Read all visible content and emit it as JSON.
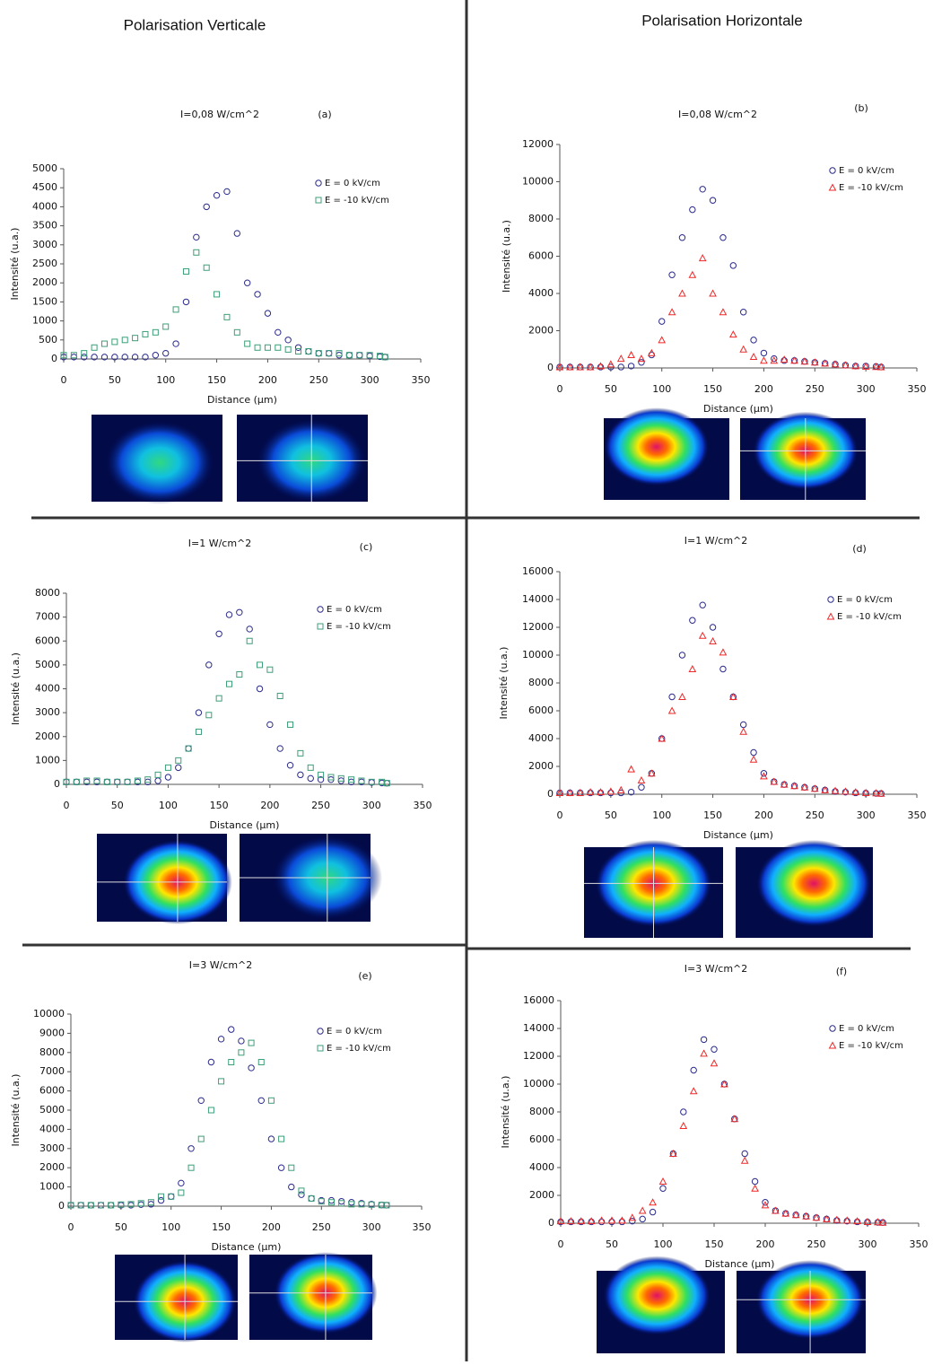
{
  "columns": [
    "Polarisation Verticale",
    "Polarisation Horizontale"
  ],
  "chart_data": [
    {
      "type": "scatter",
      "title": "I=0,08 W/cm^2",
      "annotation": "(a)",
      "x_label": "Distance (μm)",
      "y_label": "Intensité (u.a.)",
      "x": [
        0,
        10,
        20,
        30,
        40,
        50,
        60,
        70,
        80,
        90,
        100,
        110,
        120,
        130,
        140,
        150,
        160,
        170,
        180,
        190,
        200,
        210,
        220,
        230,
        240,
        250,
        260,
        270,
        280,
        290,
        300,
        310,
        315
      ],
      "xlim": [
        0,
        350
      ],
      "xticks": [
        0,
        50,
        100,
        150,
        200,
        250,
        300,
        350
      ],
      "ylim": [
        0,
        5000
      ],
      "yticks": [
        0,
        500,
        1000,
        1500,
        2000,
        2500,
        3000,
        3500,
        4000,
        4500,
        5000
      ],
      "series": [
        {
          "name": "E = 0 kV/cm",
          "color": "#2b2b8c",
          "marker": "circle",
          "values": [
            50,
            50,
            50,
            50,
            50,
            50,
            50,
            50,
            50,
            100,
            150,
            400,
            1500,
            3200,
            4000,
            4300,
            4400,
            3300,
            2000,
            1700,
            1200,
            700,
            500,
            300,
            200,
            150,
            150,
            100,
            100,
            100,
            80,
            60,
            50
          ]
        },
        {
          "name": "E = -10 kV/cm",
          "color": "#3c9f78",
          "marker": "square",
          "values": [
            100,
            100,
            150,
            300,
            400,
            450,
            500,
            550,
            650,
            700,
            850,
            1300,
            2300,
            2800,
            2400,
            1700,
            1100,
            700,
            400,
            300,
            300,
            300,
            250,
            200,
            200,
            150,
            150,
            150,
            100,
            100,
            100,
            80,
            50
          ]
        }
      ]
    },
    {
      "type": "scatter",
      "title": "I=0,08 W/cm^2",
      "annotation": "(b)",
      "x_label": "Distance (μm)",
      "y_label": "Intensité (u.a.)",
      "x": [
        0,
        10,
        20,
        30,
        40,
        50,
        60,
        70,
        80,
        90,
        100,
        110,
        120,
        130,
        140,
        150,
        160,
        170,
        180,
        190,
        200,
        210,
        220,
        230,
        240,
        250,
        260,
        270,
        280,
        290,
        300,
        310,
        315
      ],
      "xlim": [
        0,
        350
      ],
      "xticks": [
        0,
        50,
        100,
        150,
        200,
        250,
        300,
        350
      ],
      "ylim": [
        0,
        12000
      ],
      "yticks": [
        0,
        2000,
        4000,
        6000,
        8000,
        10000,
        12000
      ],
      "series": [
        {
          "name": "E = 0 kV/cm",
          "color": "#2b2b8c",
          "marker": "circle",
          "values": [
            50,
            50,
            50,
            50,
            50,
            50,
            50,
            100,
            300,
            700,
            2500,
            5000,
            7000,
            8500,
            9600,
            9000,
            7000,
            5500,
            3000,
            1500,
            800,
            500,
            400,
            400,
            350,
            300,
            250,
            200,
            150,
            100,
            100,
            80,
            50
          ]
        },
        {
          "name": "E = -10 kV/cm",
          "color": "#ee2a2a",
          "marker": "triangle",
          "values": [
            50,
            50,
            50,
            50,
            100,
            200,
            500,
            700,
            500,
            800,
            1500,
            3000,
            4000,
            5000,
            5900,
            4000,
            3000,
            1800,
            1000,
            600,
            400,
            400,
            450,
            400,
            350,
            300,
            250,
            200,
            150,
            100,
            80,
            60,
            50
          ]
        }
      ]
    },
    {
      "type": "scatter",
      "title": "I=1 W/cm^2",
      "annotation": "(c)",
      "x_label": "Distance (μm)",
      "y_label": "Intensité (u.a.)",
      "x": [
        0,
        10,
        20,
        30,
        40,
        50,
        60,
        70,
        80,
        90,
        100,
        110,
        120,
        130,
        140,
        150,
        160,
        170,
        180,
        190,
        200,
        210,
        220,
        230,
        240,
        250,
        260,
        270,
        280,
        290,
        300,
        310,
        315
      ],
      "xlim": [
        0,
        350
      ],
      "xticks": [
        0,
        50,
        100,
        150,
        200,
        250,
        300,
        350
      ],
      "ylim": [
        0,
        8000
      ],
      "yticks": [
        0,
        1000,
        2000,
        3000,
        4000,
        5000,
        6000,
        7000,
        8000
      ],
      "series": [
        {
          "name": "E = 0 kV/cm",
          "color": "#2b2b8c",
          "marker": "circle",
          "values": [
            100,
            100,
            100,
            100,
            100,
            100,
            100,
            100,
            100,
            150,
            300,
            700,
            1500,
            3000,
            5000,
            6300,
            7100,
            7200,
            6500,
            4000,
            2500,
            1500,
            800,
            400,
            250,
            200,
            200,
            150,
            100,
            100,
            80,
            60,
            50
          ]
        },
        {
          "name": "E = -10 kV/cm",
          "color": "#3c9f78",
          "marker": "square",
          "values": [
            100,
            100,
            150,
            150,
            100,
            100,
            100,
            150,
            200,
            400,
            700,
            1000,
            1500,
            2200,
            2900,
            3600,
            4200,
            4600,
            6000,
            5000,
            4800,
            3700,
            2500,
            1300,
            700,
            400,
            300,
            250,
            200,
            150,
            100,
            100,
            50
          ]
        }
      ]
    },
    {
      "type": "scatter",
      "title": "I=1 W/cm^2",
      "annotation": "(d)",
      "x_label": "Distance (μm)",
      "y_label": "Intensité (u.a.)",
      "x": [
        0,
        10,
        20,
        30,
        40,
        50,
        60,
        70,
        80,
        90,
        100,
        110,
        120,
        130,
        140,
        150,
        160,
        170,
        180,
        190,
        200,
        210,
        220,
        230,
        240,
        250,
        260,
        270,
        280,
        290,
        300,
        310,
        315
      ],
      "xlim": [
        0,
        350
      ],
      "xticks": [
        0,
        50,
        100,
        150,
        200,
        250,
        300,
        350
      ],
      "ylim": [
        0,
        16000
      ],
      "yticks": [
        0,
        2000,
        4000,
        6000,
        8000,
        10000,
        12000,
        14000,
        16000
      ],
      "series": [
        {
          "name": "E = 0 kV/cm",
          "color": "#2b2b8c",
          "marker": "circle",
          "values": [
            100,
            100,
            100,
            100,
            100,
            100,
            100,
            150,
            500,
            1500,
            4000,
            7000,
            10000,
            12500,
            13600,
            12000,
            9000,
            7000,
            5000,
            3000,
            1500,
            900,
            700,
            600,
            500,
            400,
            300,
            200,
            150,
            100,
            80,
            60,
            50
          ]
        },
        {
          "name": "E = -10 kV/cm",
          "color": "#ee2a2a",
          "marker": "triangle",
          "values": [
            100,
            100,
            100,
            150,
            150,
            200,
            300,
            1800,
            1000,
            1500,
            4000,
            6000,
            7000,
            9000,
            11400,
            11000,
            10200,
            7000,
            4500,
            2500,
            1300,
            900,
            700,
            600,
            500,
            400,
            300,
            250,
            200,
            150,
            100,
            80,
            50
          ]
        }
      ]
    },
    {
      "type": "scatter",
      "title": "I=3 W/cm^2",
      "annotation": "(e)",
      "x_label": "Distance (μm)",
      "y_label": "Intensité (u.a.)",
      "x": [
        0,
        10,
        20,
        30,
        40,
        50,
        60,
        70,
        80,
        90,
        100,
        110,
        120,
        130,
        140,
        150,
        160,
        170,
        180,
        190,
        200,
        210,
        220,
        230,
        240,
        250,
        260,
        270,
        280,
        290,
        300,
        310,
        315
      ],
      "xlim": [
        0,
        350
      ],
      "xticks": [
        0,
        50,
        100,
        150,
        200,
        250,
        300,
        350
      ],
      "ylim": [
        0,
        10000
      ],
      "yticks": [
        0,
        1000,
        2000,
        3000,
        4000,
        5000,
        6000,
        7000,
        8000,
        9000,
        10000
      ],
      "series": [
        {
          "name": "E = 0 kV/cm",
          "color": "#2b2b8c",
          "marker": "circle",
          "values": [
            50,
            50,
            50,
            50,
            50,
            50,
            50,
            80,
            100,
            300,
            500,
            1200,
            3000,
            5500,
            7500,
            8700,
            9200,
            8600,
            7200,
            5500,
            3500,
            2000,
            1000,
            600,
            400,
            300,
            300,
            250,
            200,
            150,
            100,
            60,
            50
          ]
        },
        {
          "name": "E = -10 kV/cm",
          "color": "#3c9f78",
          "marker": "square",
          "values": [
            50,
            50,
            50,
            50,
            50,
            80,
            100,
            150,
            200,
            500,
            500,
            700,
            2000,
            3500,
            5000,
            6500,
            7500,
            8000,
            8500,
            7500,
            5500,
            3500,
            2000,
            800,
            400,
            250,
            200,
            150,
            100,
            100,
            80,
            60,
            50
          ]
        }
      ]
    },
    {
      "type": "scatter",
      "title": "I=3 W/cm^2",
      "annotation": "(f)",
      "x_label": "Distance (μm)",
      "y_label": "Intensité (u.a.)",
      "x": [
        0,
        10,
        20,
        30,
        40,
        50,
        60,
        70,
        80,
        90,
        100,
        110,
        120,
        130,
        140,
        150,
        160,
        170,
        180,
        190,
        200,
        210,
        220,
        230,
        240,
        250,
        260,
        270,
        280,
        290,
        300,
        310,
        315
      ],
      "xlim": [
        0,
        350
      ],
      "xticks": [
        0,
        50,
        100,
        150,
        200,
        250,
        300,
        350
      ],
      "ylim": [
        0,
        16000
      ],
      "yticks": [
        0,
        2000,
        4000,
        6000,
        8000,
        10000,
        12000,
        14000,
        16000
      ],
      "series": [
        {
          "name": "E = 0 kV/cm",
          "color": "#2b2b8c",
          "marker": "circle",
          "values": [
            100,
            100,
            100,
            100,
            100,
            100,
            100,
            150,
            300,
            800,
            2500,
            5000,
            8000,
            11000,
            13200,
            12500,
            10000,
            7500,
            5000,
            3000,
            1500,
            900,
            700,
            600,
            500,
            400,
            300,
            200,
            150,
            100,
            80,
            60,
            50
          ]
        },
        {
          "name": "E = -10 kV/cm",
          "color": "#ee2a2a",
          "marker": "triangle",
          "values": [
            150,
            150,
            150,
            150,
            200,
            200,
            200,
            400,
            900,
            1500,
            3000,
            5000,
            7000,
            9500,
            12200,
            11500,
            10000,
            7500,
            4500,
            2500,
            1300,
            900,
            700,
            600,
            500,
            400,
            300,
            250,
            200,
            150,
            100,
            80,
            50
          ]
        }
      ]
    }
  ]
}
